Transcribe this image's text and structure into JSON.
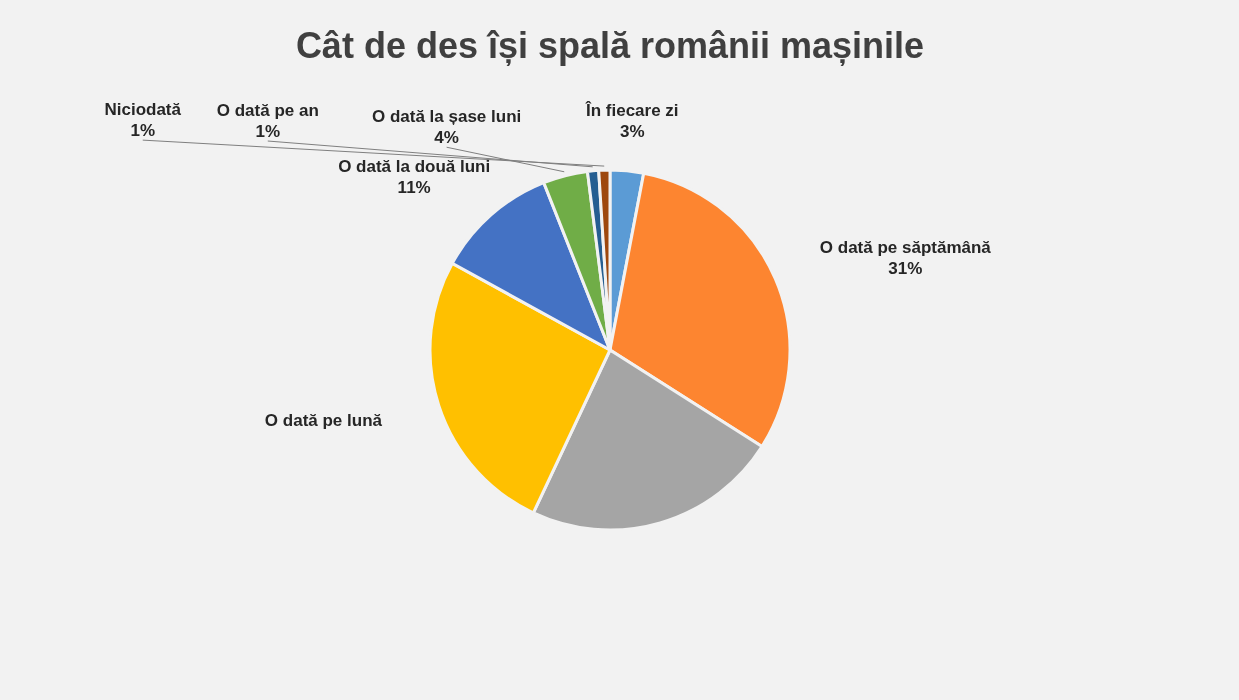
{
  "chart_data": {
    "type": "pie",
    "title": "Cât de des își spală românii mașinile",
    "categories": [
      "În fiecare zi",
      "O dată pe săptămână",
      null,
      "O dată pe lună",
      "O dată la două luni",
      "O dată la șase luni",
      "O dată pe an",
      "Niciodată"
    ],
    "values": [
      3,
      31,
      23,
      26,
      11,
      4,
      1,
      1
    ],
    "colors": [
      "#5b9bd5",
      "#fd8530",
      "#a5a5a5",
      "#ffc000",
      "#4472c4",
      "#70ad47",
      "#255e91",
      "#9e480e"
    ],
    "value_labels": [
      "3%",
      "31%",
      null,
      null,
      "11%",
      "4%",
      "1%",
      "1%"
    ]
  }
}
